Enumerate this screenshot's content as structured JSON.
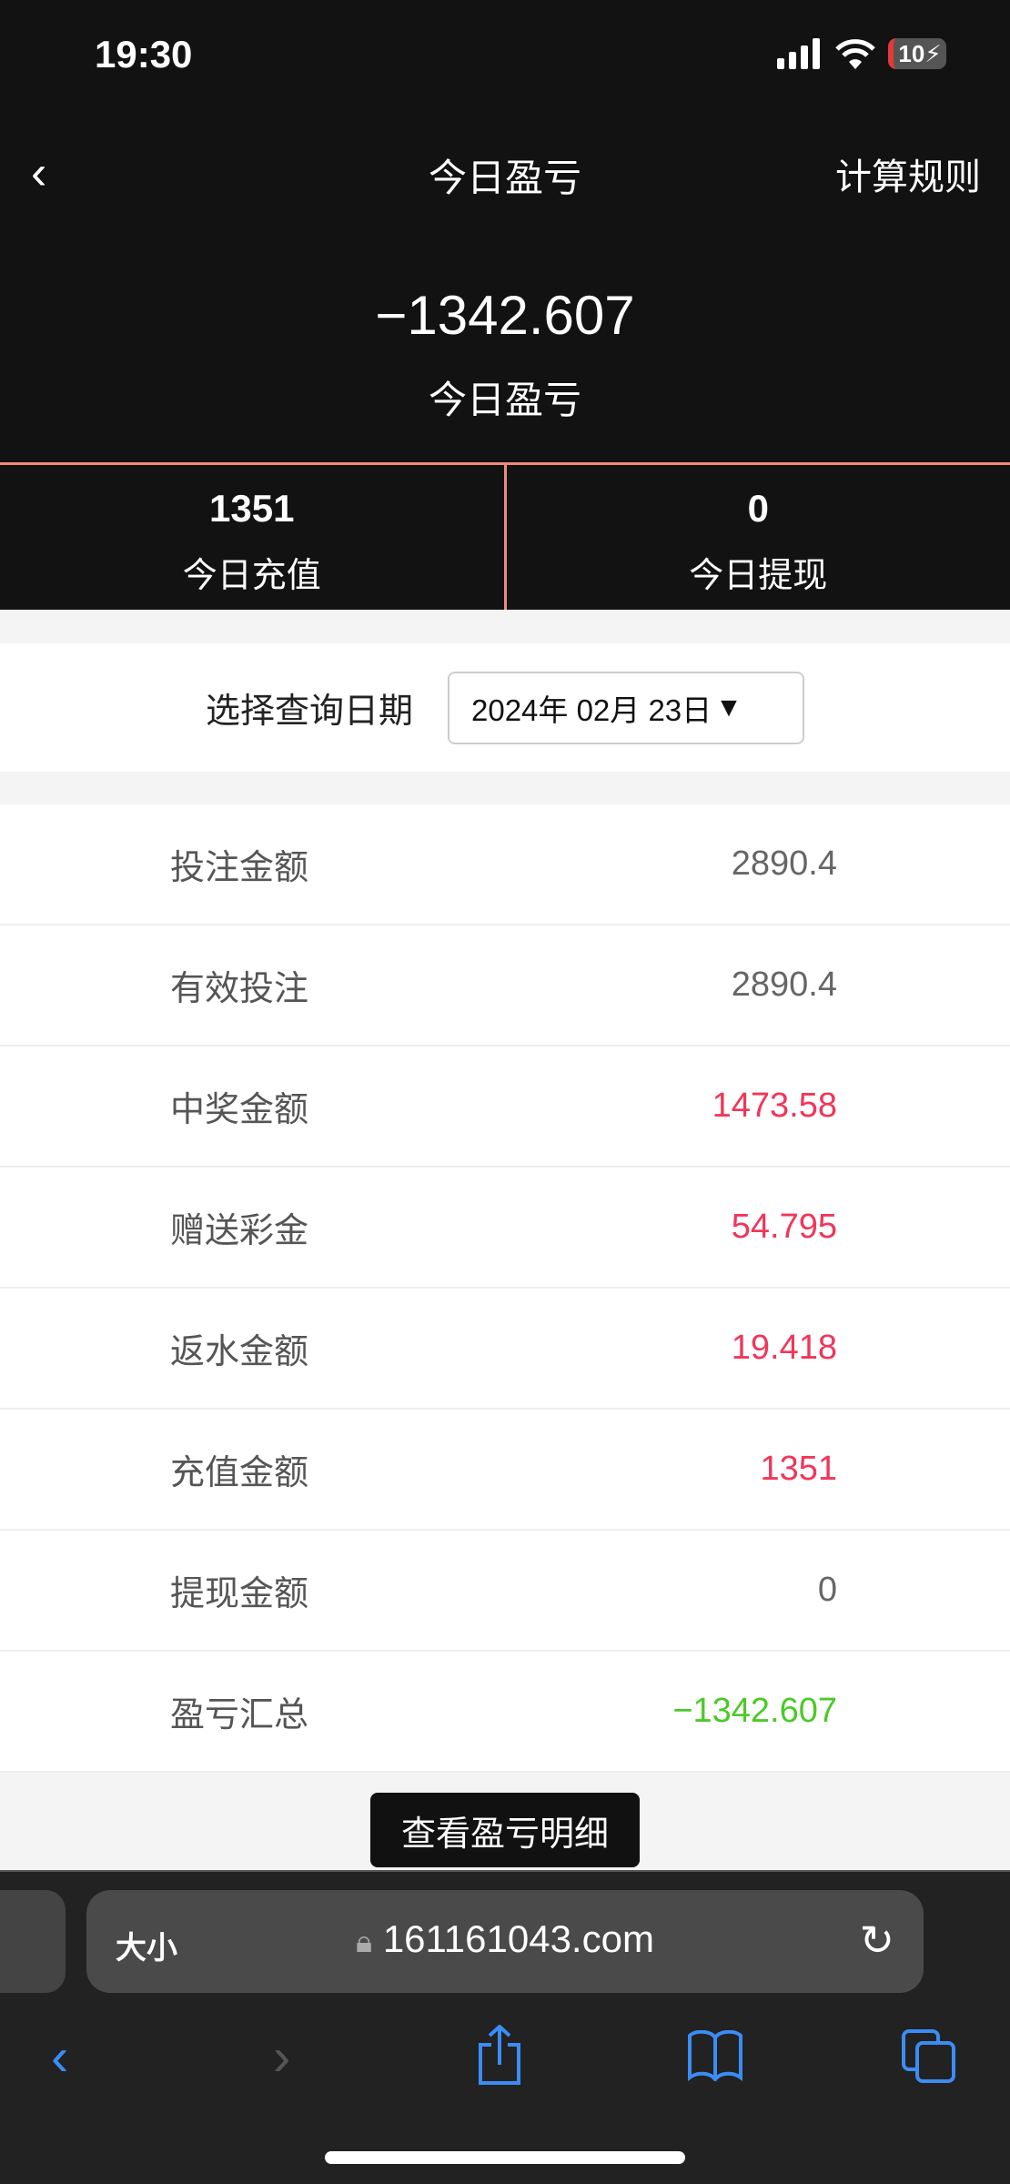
{
  "status_bar": {
    "time": "19:30",
    "battery": "10"
  },
  "nav": {
    "back_icon": "chevron-left",
    "title": "今日盈亏",
    "rules_label": "计算规则"
  },
  "summary": {
    "value": "−1342.607",
    "label": "今日盈亏"
  },
  "stats": [
    {
      "value": "1351",
      "label": "今日充值"
    },
    {
      "value": "0",
      "label": "今日提现"
    }
  ],
  "date_query": {
    "label": "选择查询日期",
    "value": "2024年 02月 23日"
  },
  "rows": [
    {
      "label": "投注金额",
      "value": "2890.4",
      "color": "#666666"
    },
    {
      "label": "有效投注",
      "value": "2890.4",
      "color": "#666666"
    },
    {
      "label": "中奖金额",
      "value": "1473.58",
      "color": "#f0365a"
    },
    {
      "label": "赠送彩金",
      "value": "54.795",
      "color": "#f0365a"
    },
    {
      "label": "返水金额",
      "value": "19.418",
      "color": "#f0365a"
    },
    {
      "label": "充值金额",
      "value": "1351",
      "color": "#f0365a"
    },
    {
      "label": "提现金额",
      "value": "0",
      "color": "#666666"
    },
    {
      "label": "盈亏汇总",
      "value": "−1342.607",
      "color": "#4cc92a"
    }
  ],
  "detail_button": "查看盈亏明细",
  "browser": {
    "text_size": "大小",
    "url": "161161043.com"
  }
}
